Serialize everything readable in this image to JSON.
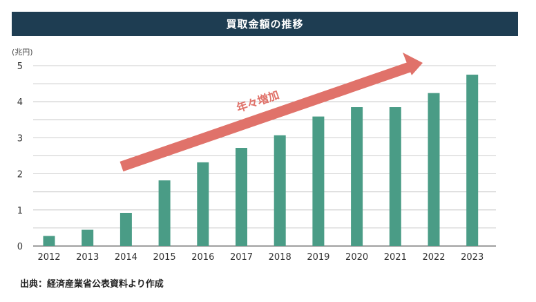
{
  "header": {
    "title": "買取金額の推移"
  },
  "chart_data": {
    "type": "bar",
    "title": "買取金額の推移",
    "unit_label": "(兆円)",
    "categories": [
      "2012",
      "2013",
      "2014",
      "2015",
      "2016",
      "2017",
      "2018",
      "2019",
      "2020",
      "2021",
      "2022",
      "2023"
    ],
    "values": [
      0.28,
      0.45,
      0.92,
      1.82,
      2.32,
      2.72,
      3.07,
      3.59,
      3.85,
      3.85,
      4.24,
      4.75
    ],
    "ylim": [
      0,
      5
    ],
    "yticks": [
      0,
      1,
      2,
      3,
      4,
      5
    ],
    "grid_step": 0.5,
    "bar_color": "#4a9c86",
    "annotation": {
      "text": "年々増加",
      "color": "#e0726a"
    }
  },
  "footer": {
    "source": "出典：経済産業省公表資料より作成"
  }
}
